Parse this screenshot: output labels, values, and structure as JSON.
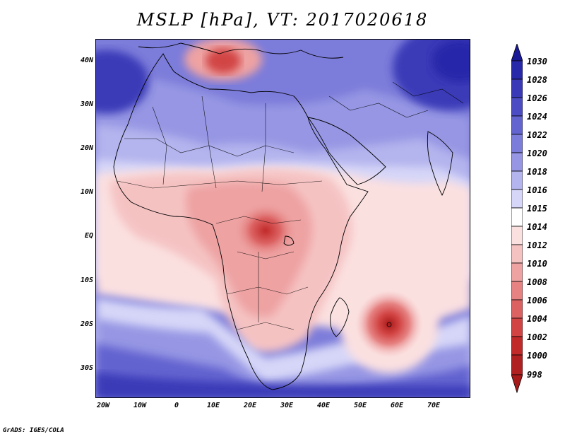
{
  "title": "MSLP [hPa], VT: 2017020618",
  "lat_labels": [
    "40N",
    "30N",
    "20N",
    "10N",
    "EQ",
    "10S",
    "20S",
    "30S"
  ],
  "lon_labels": [
    "20W",
    "10W",
    "0",
    "10E",
    "20E",
    "30E",
    "40E",
    "50E",
    "60E",
    "70E"
  ],
  "colorbar": {
    "levels": [
      "1030",
      "1028",
      "1026",
      "1024",
      "1022",
      "1020",
      "1018",
      "1016",
      "1015",
      "1014",
      "1012",
      "1010",
      "1008",
      "1006",
      "1004",
      "1002",
      "1000",
      "998"
    ],
    "colors": {
      "c1030": "#1a1a96",
      "c1028": "#2828aa",
      "c1026": "#3a3ab8",
      "c1024": "#4c4cc4",
      "c1022": "#6464d0",
      "c1020": "#7c7cda",
      "c1018": "#9696e4",
      "c1016": "#b4b4ee",
      "c1015": "#d6d6f8",
      "c1014": "#ffffff",
      "c1012": "#fbe0e0",
      "c1010": "#f5c2c2",
      "c1008": "#eea2a2",
      "c1006": "#e68282",
      "c1004": "#dc6262",
      "c1002": "#d24444",
      "c1000": "#c22a2a",
      "c998": "#a81a1a"
    }
  },
  "credit": "GrADS: IGES/COLA"
}
